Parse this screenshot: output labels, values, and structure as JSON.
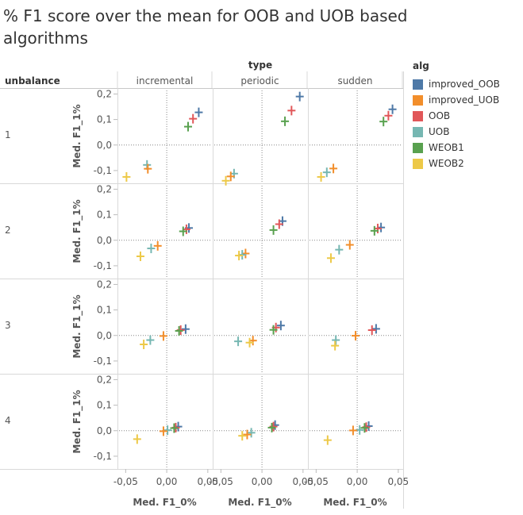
{
  "title": "% F1 score over the mean for OOB and UOB based algorithms",
  "chart_data": {
    "type": "scatter",
    "marker": "cross",
    "column_field": "type",
    "row_field": "unbalance",
    "columns": [
      "incremental",
      "periodic",
      "sudden"
    ],
    "rows": [
      "1",
      "2",
      "3",
      "4"
    ],
    "xlabel": "Med. F1_0%",
    "ylabel": "Med. F1_1%",
    "xlim": [
      -0.06,
      0.055
    ],
    "ylim": [
      -0.15,
      0.22
    ],
    "x_ticks": [
      -0.05,
      0.0,
      0.05
    ],
    "x_tick_labels": [
      "-0,05",
      "0,00",
      "0,05"
    ],
    "y_ticks": [
      0.2,
      0.1,
      0.0,
      -0.1
    ],
    "y_tick_labels": [
      "0,2",
      "0,1",
      "0,0",
      "-0,1"
    ],
    "zero_reference_lines": true,
    "legend": {
      "title": "alg",
      "position": "right",
      "items": [
        {
          "name": "improved_OOB",
          "color": "#4e79a7"
        },
        {
          "name": "improved_UOB",
          "color": "#f28e2b"
        },
        {
          "name": "OOB",
          "color": "#e15759"
        },
        {
          "name": "UOB",
          "color": "#76b7b2"
        },
        {
          "name": "WEOB1",
          "color": "#59a14f"
        },
        {
          "name": "WEOB2",
          "color": "#edc948"
        }
      ]
    },
    "panels": [
      {
        "row": "1",
        "column": "incremental",
        "points": [
          {
            "alg": "improved_OOB",
            "x": 0.039,
            "y": 0.128
          },
          {
            "alg": "OOB",
            "x": 0.032,
            "y": 0.103
          },
          {
            "alg": "WEOB1",
            "x": 0.026,
            "y": 0.072
          },
          {
            "alg": "UOB",
            "x": -0.024,
            "y": -0.078
          },
          {
            "alg": "improved_UOB",
            "x": -0.023,
            "y": -0.093
          },
          {
            "alg": "WEOB2",
            "x": -0.049,
            "y": -0.125
          }
        ]
      },
      {
        "row": "1",
        "column": "periodic",
        "points": [
          {
            "alg": "improved_OOB",
            "x": 0.046,
            "y": 0.19
          },
          {
            "alg": "OOB",
            "x": 0.036,
            "y": 0.135
          },
          {
            "alg": "WEOB1",
            "x": 0.028,
            "y": 0.093
          },
          {
            "alg": "UOB",
            "x": -0.034,
            "y": -0.112
          },
          {
            "alg": "improved_UOB",
            "x": -0.038,
            "y": -0.123
          },
          {
            "alg": "WEOB2",
            "x": -0.044,
            "y": -0.14
          }
        ]
      },
      {
        "row": "1",
        "column": "sudden",
        "points": [
          {
            "alg": "improved_OOB",
            "x": 0.043,
            "y": 0.14
          },
          {
            "alg": "OOB",
            "x": 0.038,
            "y": 0.115
          },
          {
            "alg": "WEOB1",
            "x": 0.032,
            "y": 0.092
          },
          {
            "alg": "improved_UOB",
            "x": -0.029,
            "y": -0.092
          },
          {
            "alg": "UOB",
            "x": -0.037,
            "y": -0.107
          },
          {
            "alg": "WEOB2",
            "x": -0.044,
            "y": -0.125
          }
        ]
      },
      {
        "row": "2",
        "column": "incremental",
        "points": [
          {
            "alg": "improved_OOB",
            "x": 0.027,
            "y": 0.048
          },
          {
            "alg": "OOB",
            "x": 0.024,
            "y": 0.043
          },
          {
            "alg": "WEOB1",
            "x": 0.02,
            "y": 0.035
          },
          {
            "alg": "improved_UOB",
            "x": -0.011,
            "y": -0.022
          },
          {
            "alg": "UOB",
            "x": -0.019,
            "y": -0.032
          },
          {
            "alg": "WEOB2",
            "x": -0.032,
            "y": -0.063
          }
        ]
      },
      {
        "row": "2",
        "column": "periodic",
        "points": [
          {
            "alg": "improved_OOB",
            "x": 0.025,
            "y": 0.075
          },
          {
            "alg": "OOB",
            "x": 0.021,
            "y": 0.063
          },
          {
            "alg": "WEOB1",
            "x": 0.014,
            "y": 0.04
          },
          {
            "alg": "improved_UOB",
            "x": -0.02,
            "y": -0.052
          },
          {
            "alg": "UOB",
            "x": -0.024,
            "y": -0.057
          },
          {
            "alg": "WEOB2",
            "x": -0.028,
            "y": -0.06
          }
        ]
      },
      {
        "row": "2",
        "column": "sudden",
        "points": [
          {
            "alg": "improved_OOB",
            "x": 0.029,
            "y": 0.05
          },
          {
            "alg": "OOB",
            "x": 0.025,
            "y": 0.046
          },
          {
            "alg": "WEOB1",
            "x": 0.021,
            "y": 0.037
          },
          {
            "alg": "improved_UOB",
            "x": -0.009,
            "y": -0.018
          },
          {
            "alg": "UOB",
            "x": -0.022,
            "y": -0.037
          },
          {
            "alg": "WEOB2",
            "x": -0.032,
            "y": -0.07
          }
        ]
      },
      {
        "row": "3",
        "column": "incremental",
        "points": [
          {
            "alg": "improved_OOB",
            "x": 0.023,
            "y": 0.025
          },
          {
            "alg": "OOB",
            "x": 0.017,
            "y": 0.021
          },
          {
            "alg": "WEOB1",
            "x": 0.015,
            "y": 0.018
          },
          {
            "alg": "improved_UOB",
            "x": -0.004,
            "y": -0.002
          },
          {
            "alg": "UOB",
            "x": -0.02,
            "y": -0.018
          },
          {
            "alg": "WEOB2",
            "x": -0.028,
            "y": -0.035
          }
        ]
      },
      {
        "row": "3",
        "column": "periodic",
        "points": [
          {
            "alg": "improved_OOB",
            "x": 0.023,
            "y": 0.039
          },
          {
            "alg": "OOB",
            "x": 0.017,
            "y": 0.031
          },
          {
            "alg": "WEOB1",
            "x": 0.014,
            "y": 0.022
          },
          {
            "alg": "improved_UOB",
            "x": -0.011,
            "y": -0.02
          },
          {
            "alg": "WEOB2",
            "x": -0.015,
            "y": -0.028
          },
          {
            "alg": "UOB",
            "x": -0.029,
            "y": -0.023
          }
        ]
      },
      {
        "row": "3",
        "column": "sudden",
        "points": [
          {
            "alg": "improved_OOB",
            "x": 0.023,
            "y": 0.026
          },
          {
            "alg": "OOB",
            "x": 0.018,
            "y": 0.021
          },
          {
            "alg": "improved_UOB",
            "x": -0.002,
            "y": -0.001
          },
          {
            "alg": "UOB",
            "x": -0.026,
            "y": -0.018
          },
          {
            "alg": "WEOB2",
            "x": -0.027,
            "y": -0.04
          }
        ]
      },
      {
        "row": "4",
        "column": "incremental",
        "points": [
          {
            "alg": "improved_OOB",
            "x": 0.014,
            "y": 0.016
          },
          {
            "alg": "OOB",
            "x": 0.011,
            "y": 0.012
          },
          {
            "alg": "WEOB1",
            "x": 0.009,
            "y": 0.01
          },
          {
            "alg": "UOB",
            "x": 0.001,
            "y": 0.002
          },
          {
            "alg": "improved_UOB",
            "x": -0.004,
            "y": -0.002
          },
          {
            "alg": "WEOB2",
            "x": -0.036,
            "y": -0.033
          }
        ]
      },
      {
        "row": "4",
        "column": "periodic",
        "points": [
          {
            "alg": "improved_OOB",
            "x": 0.016,
            "y": 0.022
          },
          {
            "alg": "OOB",
            "x": 0.014,
            "y": 0.016
          },
          {
            "alg": "WEOB1",
            "x": 0.012,
            "y": 0.012
          },
          {
            "alg": "UOB",
            "x": -0.013,
            "y": -0.008
          },
          {
            "alg": "improved_UOB",
            "x": -0.018,
            "y": -0.015
          },
          {
            "alg": "WEOB2",
            "x": -0.024,
            "y": -0.02
          }
        ]
      },
      {
        "row": "4",
        "column": "sudden",
        "points": [
          {
            "alg": "improved_OOB",
            "x": 0.014,
            "y": 0.018
          },
          {
            "alg": "OOB",
            "x": 0.011,
            "y": 0.014
          },
          {
            "alg": "WEOB1",
            "x": 0.009,
            "y": 0.011
          },
          {
            "alg": "UOB",
            "x": 0.003,
            "y": 0.003
          },
          {
            "alg": "improved_UOB",
            "x": -0.005,
            "y": 0.001
          },
          {
            "alg": "WEOB2",
            "x": -0.036,
            "y": -0.037
          }
        ]
      }
    ]
  }
}
